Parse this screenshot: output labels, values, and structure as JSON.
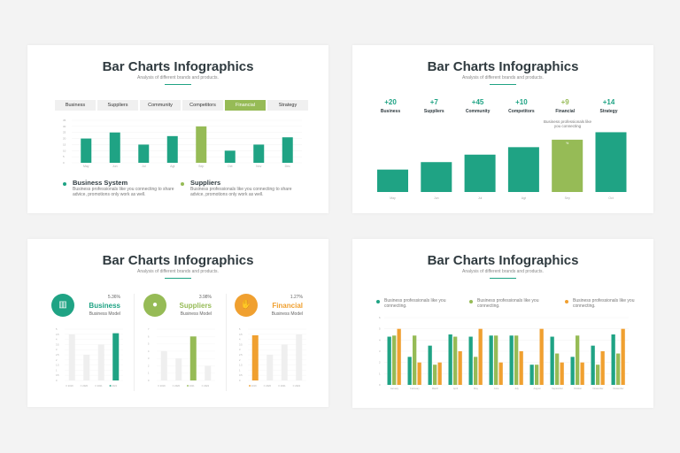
{
  "colors": {
    "green": "#1fa384",
    "lightgreen": "#96bb56",
    "orange": "#f0a030",
    "grey": "#efefef"
  },
  "slides": [
    {
      "title": "Bar Charts Infographics",
      "subtitle": "Analysis of different brands and products.",
      "tabs": [
        "Business",
        "Suppliers",
        "Community",
        "Competitors",
        "Financial",
        "Strategy"
      ],
      "active_tab": "Financial",
      "legend": [
        {
          "title": "Business System",
          "text": "Business professionals like you connecting to share advice, promotions only work as well."
        },
        {
          "title": "Suppliers",
          "text": "Business professionals like you connecting to share advice, promotions only work as well."
        }
      ]
    },
    {
      "title": "Bar Charts Infographics",
      "subtitle": "Analysis of different brands and products.",
      "columns": [
        {
          "value": "+20",
          "label": "Business"
        },
        {
          "value": "+7",
          "label": "Suppliers"
        },
        {
          "value": "+45",
          "label": "Community"
        },
        {
          "value": "+10",
          "label": "Competitors"
        },
        {
          "value": "+9",
          "label": "Financial"
        },
        {
          "value": "+14",
          "label": "Strategy"
        }
      ],
      "note": "Business professionals like you connecting",
      "bar_label": "%"
    },
    {
      "title": "Bar Charts Infographics",
      "subtitle": "Analysis of different brands and products.",
      "panels": [
        {
          "percent": "5.36%",
          "name": "Business",
          "model": "Business Model",
          "icon": "chart-icon"
        },
        {
          "percent": "3.98%",
          "name": "Suppliers",
          "model": "Business Model",
          "icon": "lightbulb-icon"
        },
        {
          "percent": "1.27%",
          "name": "Financial",
          "model": "Business Model",
          "icon": "hand-money-icon"
        }
      ]
    },
    {
      "title": "Bar Charts Infographics",
      "subtitle": "Analysis of different brands and products.",
      "legend": [
        "Business professionals like you connecting.",
        "Business professionals like you connecting.",
        "Business professionals like you connecting."
      ]
    }
  ],
  "chart_data": [
    {
      "type": "bar",
      "categories": [
        "May",
        "Jun",
        "Jul",
        "Agt",
        "Sep",
        "Oct",
        "Nov",
        "Dec"
      ],
      "values": [
        20,
        25,
        15,
        22,
        30,
        10,
        15,
        21
      ],
      "highlight": "Sep",
      "ylim": [
        0,
        35
      ],
      "yticks": [
        0,
        5,
        10,
        15,
        20,
        25,
        30,
        35
      ],
      "grid": true
    },
    {
      "type": "bar",
      "categories": [
        "May",
        "Jun",
        "Jul",
        "Agt",
        "Sep",
        "Oct"
      ],
      "values": [
        3,
        4,
        5,
        6,
        7,
        8
      ],
      "highlight": "Sep"
    },
    {
      "type": "bar",
      "categories": [
        "2019",
        "2020",
        "2021",
        "2022"
      ],
      "values": [
        4.5,
        2.5,
        3.5,
        4.6
      ],
      "highlight": "2022",
      "ylim": [
        0,
        5
      ],
      "yticks": [
        0,
        0.5,
        1,
        1.5,
        2,
        2.5,
        3,
        3.5,
        4,
        4.5,
        5
      ]
    },
    {
      "type": "bar",
      "categories": [
        "2019",
        "2020",
        "2021",
        "2022"
      ],
      "values": [
        4,
        3,
        6,
        2
      ],
      "highlight": "2021",
      "ylim": [
        0,
        7
      ],
      "yticks": [
        0,
        1,
        2,
        3,
        4,
        5,
        6,
        7
      ]
    },
    {
      "type": "bar",
      "categories": [
        "2019",
        "2020",
        "2021",
        "2022"
      ],
      "values": [
        4.4,
        2.5,
        3.5,
        4.5
      ],
      "highlight": "2019",
      "ylim": [
        0,
        5
      ],
      "yticks": [
        0,
        0.5,
        1,
        1.5,
        2,
        2.5,
        3,
        3.5,
        4,
        4.5,
        5
      ]
    },
    {
      "type": "bar",
      "categories": [
        "January",
        "February",
        "March",
        "April",
        "May",
        "June",
        "July",
        "August",
        "September",
        "October",
        "November",
        "December"
      ],
      "series": [
        {
          "values": [
            4.3,
            2.5,
            3.5,
            4.5,
            4.3,
            4.4,
            4.4,
            1.8,
            4.3,
            2.5,
            3.5,
            4.5
          ]
        },
        {
          "values": [
            4.4,
            4.4,
            1.8,
            4.3,
            2.5,
            4.4,
            4.4,
            1.8,
            2.8,
            4.4,
            1.8,
            2.8
          ]
        },
        {
          "values": [
            5,
            2,
            2,
            3,
            5,
            2,
            3,
            5,
            2,
            2,
            3,
            5
          ]
        }
      ],
      "ylim": [
        0,
        6
      ],
      "yticks": [
        0,
        1,
        2,
        3,
        4,
        5,
        6
      ],
      "grid": true
    }
  ]
}
